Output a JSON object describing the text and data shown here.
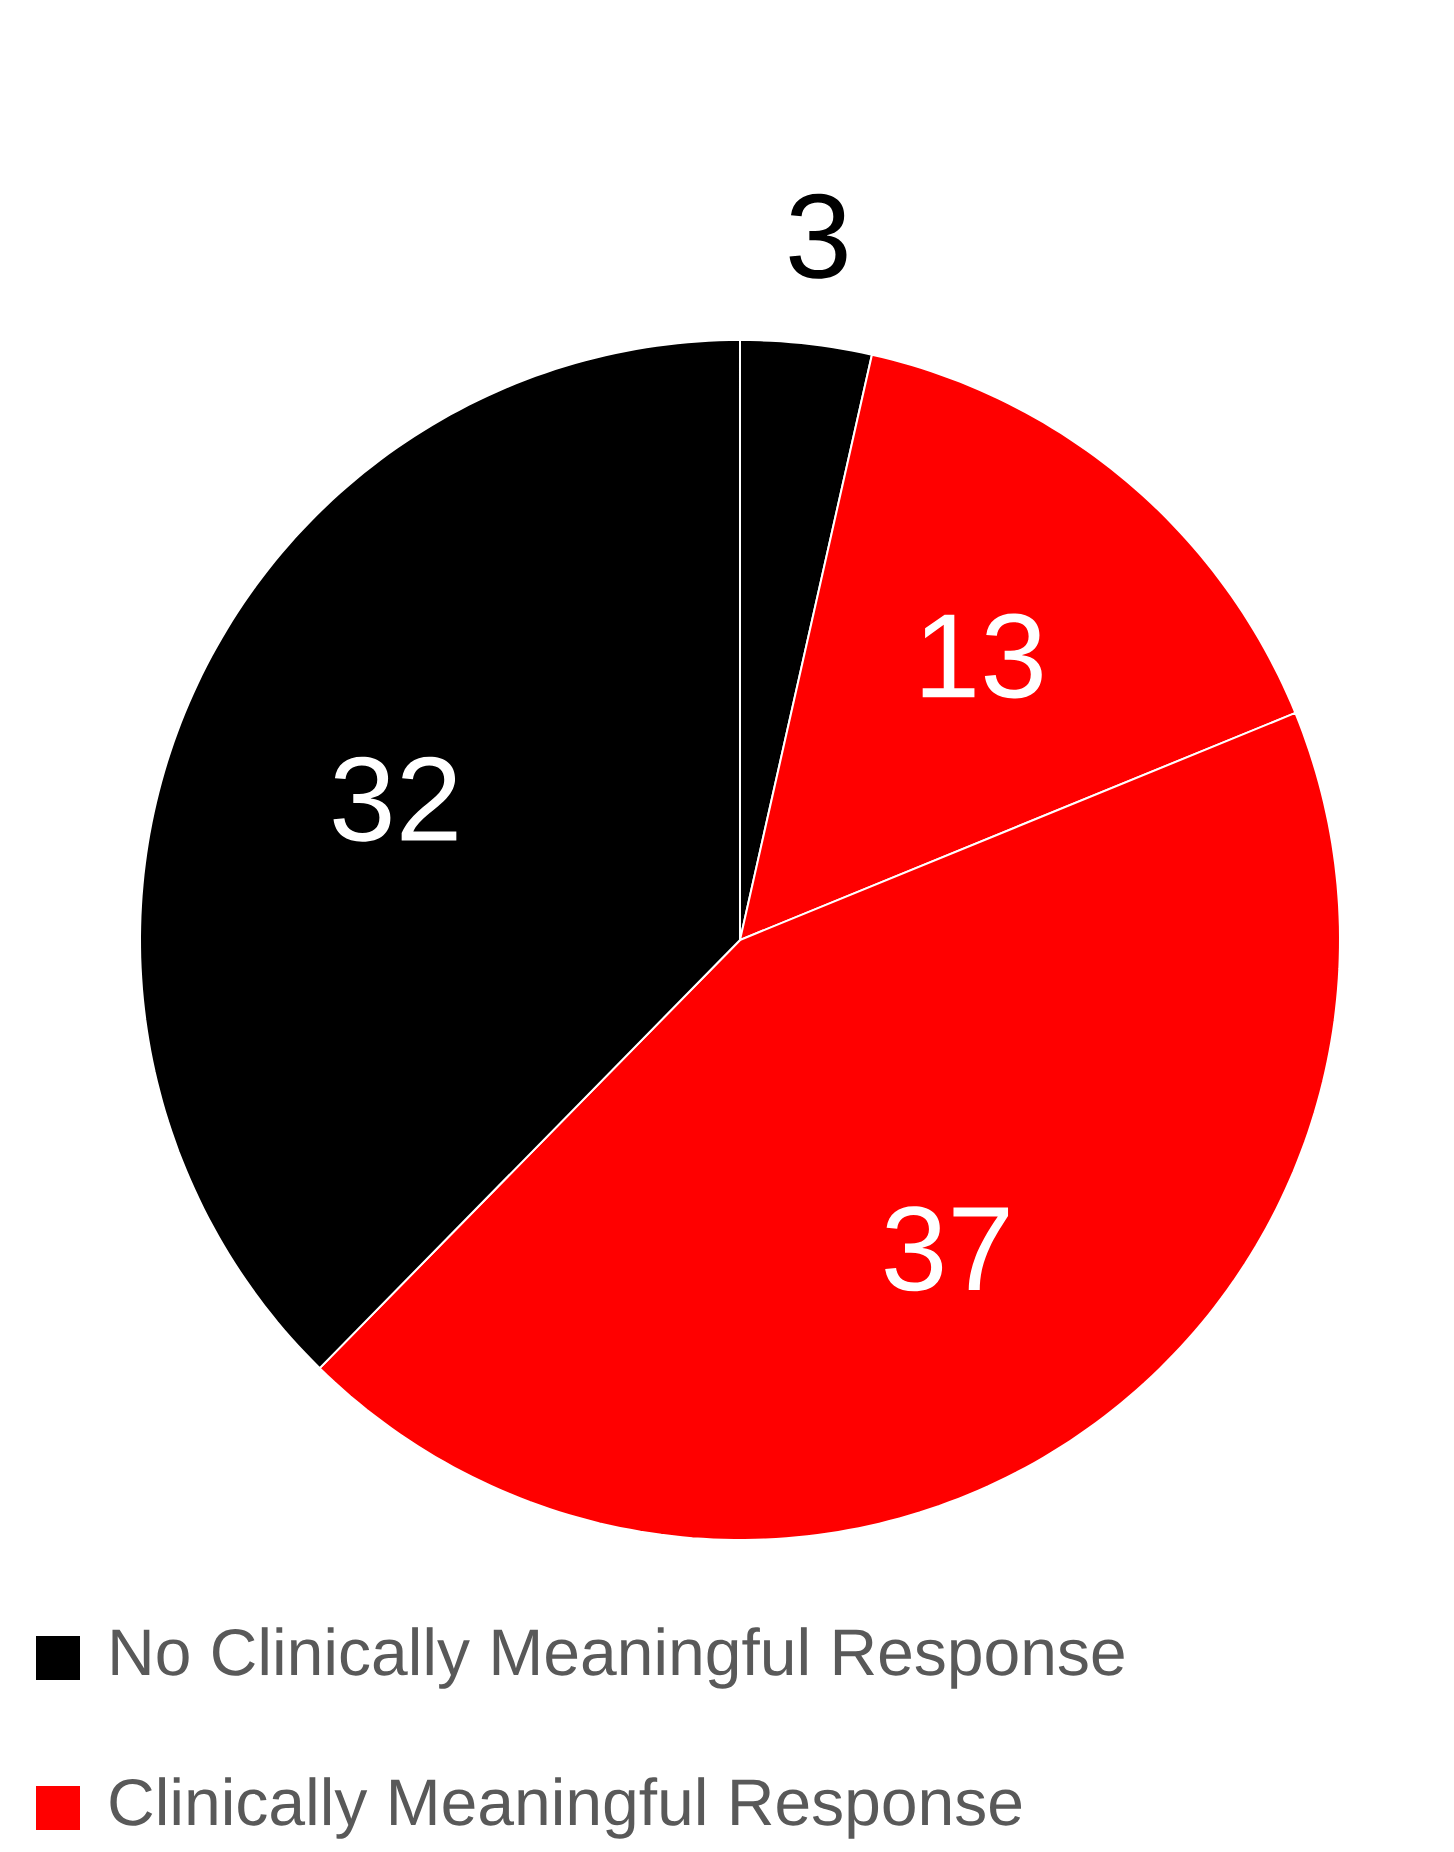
{
  "chart_data": {
    "type": "pie",
    "categories": [
      "No Clinically Meaningful Response",
      "Clinically Meaningful Response",
      null,
      null
    ],
    "values": [
      3,
      13,
      37,
      32
    ],
    "colors": [
      "#000000",
      "#ff0000",
      "#ff0000",
      "#000000"
    ],
    "data_labels": true,
    "legend": "bottom"
  }
}
